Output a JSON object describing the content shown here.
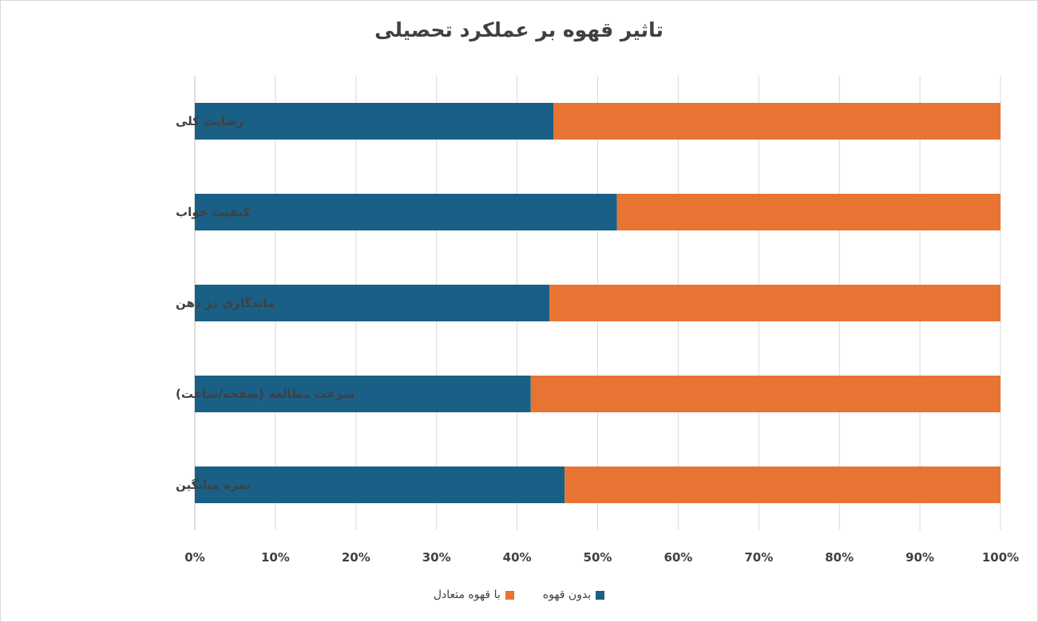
{
  "chart_data": {
    "type": "bar",
    "orientation": "horizontal",
    "stacking": "percent",
    "title": "تاثیر قهوه بر عملکرد تحصیلی",
    "categories": [
      "رضایت کلی",
      "کیفیت خواب",
      "ماندگاری در ذهن",
      "سرعت مطالعه (صفحه/ساعت)",
      "نمره میانگین"
    ],
    "series": [
      {
        "name": "بدون قهوه",
        "color": "#1a5f85",
        "values": [
          44.5,
          52.4,
          44.0,
          41.7,
          45.9
        ]
      },
      {
        "name": "با قهوه متعادل",
        "color": "#e87434",
        "values": [
          55.5,
          47.6,
          56.0,
          58.3,
          54.1
        ]
      }
    ],
    "xlim": [
      0,
      100
    ],
    "xticks": [
      "0%",
      "10%",
      "20%",
      "30%",
      "40%",
      "50%",
      "60%",
      "70%",
      "80%",
      "90%",
      "100%"
    ],
    "grid": true,
    "legend_position": "bottom"
  }
}
